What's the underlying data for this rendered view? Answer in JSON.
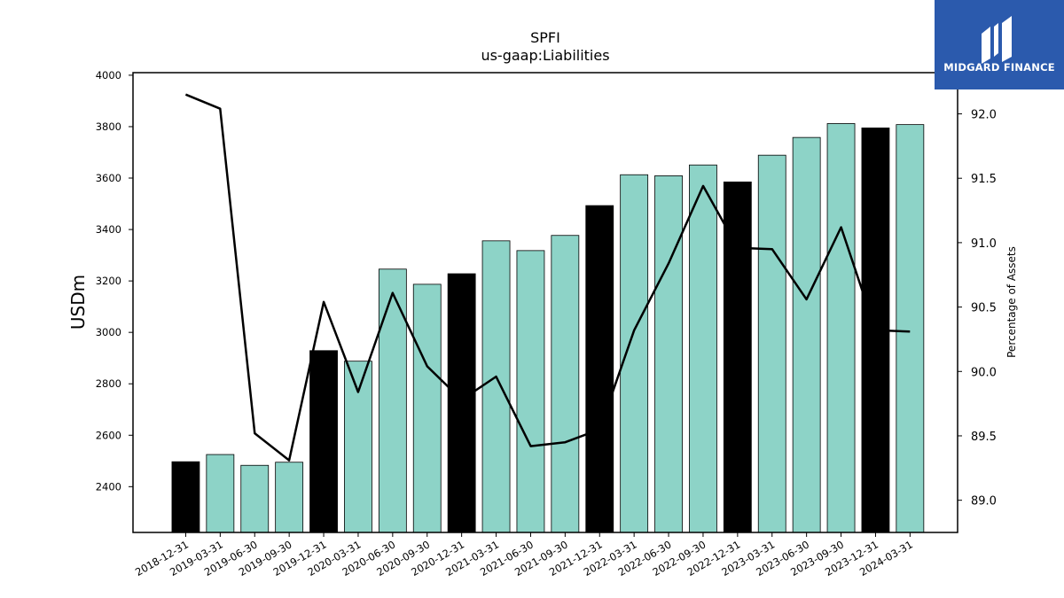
{
  "chart_data": {
    "type": "bar",
    "title": "SPFI",
    "subtitle": "us-gaap:Liabilities",
    "ylabel": "USDm",
    "y2label": "Percentage of Assets",
    "categories": [
      "2018-12-31",
      "2019-03-31",
      "2019-06-30",
      "2019-09-30",
      "2019-12-31",
      "2020-03-31",
      "2020-06-30",
      "2020-09-30",
      "2020-12-31",
      "2021-03-31",
      "2021-06-30",
      "2021-09-30",
      "2021-12-31",
      "2022-03-31",
      "2022-06-30",
      "2022-09-30",
      "2022-12-31",
      "2023-03-31",
      "2023-06-30",
      "2023-09-30",
      "2023-12-31",
      "2024-03-31"
    ],
    "series": [
      {
        "type": "bar",
        "values": [
          2497,
          2525,
          2483,
          2495,
          2929,
          2888,
          3246,
          3187,
          3228,
          3356,
          3318,
          3377,
          3493,
          3613,
          3609,
          3651,
          3585,
          3689,
          3758,
          3812,
          3795,
          3808
        ]
      },
      {
        "type": "line",
        "axis": "right",
        "values": [
          92.15,
          92.04,
          89.52,
          89.31,
          90.54,
          89.84,
          90.61,
          90.04,
          89.78,
          89.96,
          89.42,
          89.45,
          89.55,
          90.32,
          90.84,
          91.44,
          90.96,
          90.95,
          90.56,
          91.12,
          90.32,
          90.31
        ]
      }
    ],
    "annual_flags": [
      true,
      false,
      false,
      false,
      true,
      false,
      false,
      false,
      true,
      false,
      false,
      false,
      true,
      false,
      false,
      false,
      true,
      false,
      false,
      false,
      true,
      false
    ],
    "colors": {
      "annual": "#000000",
      "quarterly": "#8dd3c7",
      "line": "#000000"
    },
    "ylim": [
      2222,
      4010
    ],
    "y2lim": [
      88.75,
      92.32
    ],
    "yticks": [
      2400,
      2600,
      2800,
      3000,
      3200,
      3400,
      3600,
      3800,
      4000
    ],
    "y2ticks": [
      "89.0",
      "89.5",
      "90.0",
      "90.5",
      "91.0",
      "91.5",
      "92.0"
    ],
    "grid": false,
    "legend": "none"
  },
  "logo": {
    "text": "MIDGARD FINANCE",
    "color": "#2b5aad",
    "icon": "midgard-logo-icon"
  }
}
